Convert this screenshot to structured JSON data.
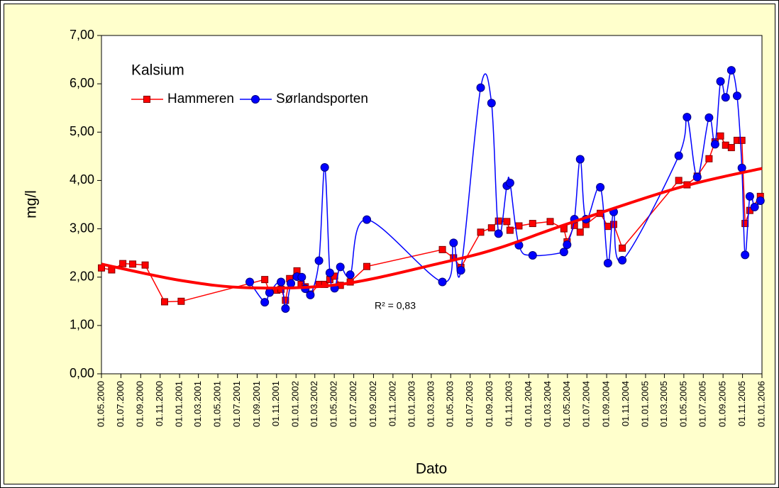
{
  "chart_data": {
    "type": "line",
    "title": "Kalsium",
    "x_label": "Dato",
    "y_label": "mg/l",
    "annotation": "R² = 0,83",
    "legend": "upper left",
    "grid": false,
    "xlim": [
      "01.05.2000",
      "01.01.2006"
    ],
    "xticks": [
      "01.05.2000",
      "01.07.2000",
      "01.09.2000",
      "01.11.2000",
      "01.01.2001",
      "01.03.2001",
      "01.05.2001",
      "01.07.2001",
      "01.09.2001",
      "01.11.2001",
      "01.01.2002",
      "01.03.2002",
      "01.05.2002",
      "01.07.2002",
      "01.09.2002",
      "01.11.2002",
      "01.01.2003",
      "01.03.2003",
      "01.05.2003",
      "01.07.2003",
      "01.09.2003",
      "01.11.2003",
      "01.01.2004",
      "01.03.2004",
      "01.05.2004",
      "01.07.2004",
      "01.09.2004",
      "01.11.2004",
      "01.01.2005",
      "01.03.2005",
      "01.05.2005",
      "01.07.2005",
      "01.09.2005",
      "01.11.2005",
      "01.01.2006"
    ],
    "ylim": [
      0,
      7
    ],
    "yticks": [
      {
        "value": 0,
        "label": "0,00"
      },
      {
        "value": 1,
        "label": "1,00"
      },
      {
        "value": 2,
        "label": "2,00"
      },
      {
        "value": 3,
        "label": "3,00"
      },
      {
        "value": 4,
        "label": "4,00"
      },
      {
        "value": 5,
        "label": "5,00"
      },
      {
        "value": 6,
        "label": "6,00"
      },
      {
        "value": 7,
        "label": "7,00"
      }
    ],
    "series": [
      {
        "name": "Hammeren",
        "color": "#ff0000",
        "marker": "square",
        "smooth": false,
        "x": [
          "01.05.2000",
          "02.06.2000",
          "07.07.2000",
          "07.08.2000",
          "15.09.2000",
          "15.11.2000",
          "06.01.2001",
          "25.09.2001",
          "10.10.2001",
          "02.11.2001",
          "15.11.2001",
          "29.11.2001",
          "12.12.2001",
          "04.01.2002",
          "17.01.2002",
          "30.01.2002",
          "15.02.2002",
          "14.03.2002",
          "01.04.2002",
          "17.04.2002",
          "02.05.2002",
          "20.05.2002",
          "20.06.2002",
          "11.08.2002",
          "05.04.2003",
          "10.05.2003",
          "02.06.2003",
          "03.08.2003",
          "06.09.2003",
          "28.09.2003",
          "24.10.2003",
          "03.11.2003",
          "01.12.2003",
          "13.01.2004",
          "08.03.2004",
          "20.04.2004",
          "30.04.2004",
          "23.05.2004",
          "10.06.2004",
          "28.06.2004",
          "12.08.2004",
          "05.09.2004",
          "23.09.2004",
          "20.10.2004",
          "15.04.2005",
          "11.05.2005",
          "12.06.2005",
          "19.07.2005",
          "07.08.2005",
          "24.08.2005",
          "09.09.2005",
          "27.09.2005",
          "15.10.2005",
          "30.10.2005",
          "09.11.2005",
          "24.11.2005",
          "27.12.2005"
        ],
        "values": [
          2.19,
          2.15,
          2.28,
          2.27,
          2.25,
          1.49,
          1.5,
          1.95,
          1.7,
          1.73,
          1.75,
          1.52,
          1.97,
          2.13,
          1.85,
          1.8,
          1.65,
          1.85,
          1.85,
          1.95,
          2.02,
          1.83,
          1.9,
          2.22,
          2.57,
          2.4,
          2.2,
          2.93,
          3.02,
          3.16,
          3.15,
          2.97,
          3.06,
          3.11,
          3.15,
          3.0,
          2.73,
          3.07,
          2.93,
          3.09,
          3.32,
          3.05,
          3.09,
          2.6,
          4.0,
          3.91,
          4.09,
          4.45,
          4.8,
          4.92,
          4.73,
          4.68,
          4.83,
          4.83,
          3.11,
          3.38,
          3.67
        ]
      },
      {
        "name": "Sørlandsporten",
        "color": "#0000ff",
        "marker": "circle",
        "smooth": true,
        "x": [
          "09.08.2001",
          "25.09.2001",
          "10.10.2001",
          "15.11.2001",
          "29.11.2001",
          "16.12.2001",
          "04.01.2002",
          "19.01.2002",
          "30.01.2002",
          "15.02.2002",
          "14.03.2002",
          "01.04.2002",
          "17.04.2002",
          "02.05.2002",
          "20.05.2002",
          "20.06.2002",
          "11.08.2002",
          "05.04.2003",
          "10.05.2003",
          "02.06.2003",
          "03.08.2003",
          "06.09.2003",
          "28.09.2003",
          "24.10.2003",
          "03.11.2003",
          "01.12.2003",
          "13.01.2004",
          "20.04.2004",
          "30.04.2004",
          "23.05.2004",
          "10.06.2004",
          "28.06.2004",
          "12.08.2004",
          "05.09.2004",
          "23.09.2004",
          "20.10.2004",
          "15.04.2005",
          "11.05.2005",
          "12.06.2005",
          "19.07.2005",
          "07.08.2005",
          "24.08.2005",
          "09.09.2005",
          "27.09.2005",
          "15.10.2005",
          "30.10.2005",
          "09.11.2005",
          "24.11.2005",
          "09.12.2005",
          "27.12.2005"
        ],
        "values": [
          1.9,
          1.48,
          1.68,
          1.9,
          1.35,
          1.87,
          2.01,
          2.0,
          1.76,
          1.63,
          2.34,
          4.27,
          2.09,
          1.77,
          2.21,
          2.05,
          3.19,
          1.9,
          2.71,
          2.14,
          5.92,
          5.6,
          2.9,
          3.89,
          3.95,
          2.66,
          2.45,
          2.52,
          2.67,
          3.2,
          4.44,
          3.2,
          3.86,
          2.29,
          3.35,
          2.35,
          4.51,
          5.31,
          4.07,
          5.3,
          4.75,
          6.05,
          5.72,
          6.28,
          5.75,
          4.26,
          2.46,
          3.67,
          3.45,
          3.58
        ]
      }
    ],
    "trendline": {
      "color": "#ff0000",
      "x": [
        "01.05.2000",
        "06.01.2001",
        "09.08.2001",
        "20.05.2002",
        "05.04.2003",
        "28.09.2003",
        "30.04.2004",
        "15.04.2005",
        "01.01.2006"
      ],
      "values": [
        2.27,
        1.93,
        1.78,
        1.85,
        2.3,
        2.6,
        3.1,
        3.85,
        4.25
      ]
    }
  }
}
